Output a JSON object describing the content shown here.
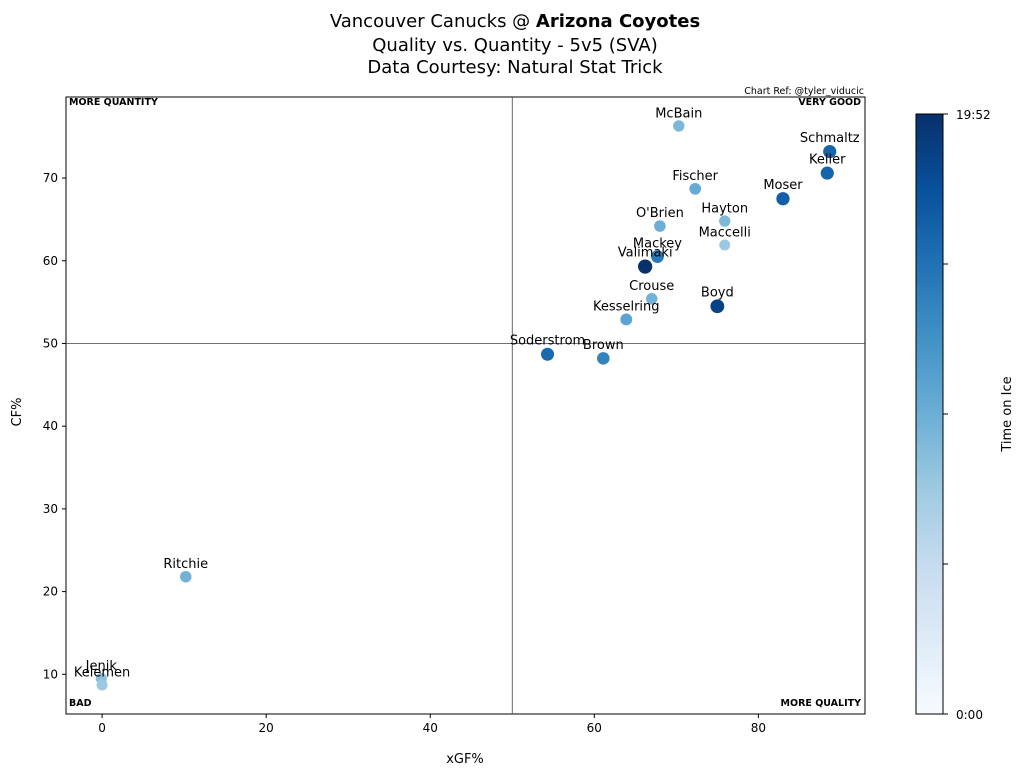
{
  "chart_data": {
    "type": "scatter",
    "title": {
      "line1_prefix": "Vancouver Canucks @ ",
      "line1_bold": "Arizona Coyotes",
      "line2": "Quality vs. Quantity - 5v5 (SVA)",
      "line3": "Data Courtesy: Natural Stat Trick"
    },
    "credit": "Chart Ref: @tyler_viducic",
    "xlabel": "xGF%",
    "ylabel": "CF%",
    "xlim": [
      -4.4,
      93
    ],
    "ylim": [
      5.2,
      79.8
    ],
    "xticks": [
      0,
      20,
      40,
      60,
      80
    ],
    "yticks": [
      10,
      20,
      30,
      40,
      50,
      60,
      70
    ],
    "reference_lines": {
      "x": 50,
      "y": 50
    },
    "quadrant_labels": {
      "top_left": "MORE QUANTITY",
      "top_right": "VERY GOOD",
      "bottom_left": "BAD",
      "bottom_right": "MORE QUALITY"
    },
    "colorbar": {
      "label": "Time on Ice",
      "colormap": "Blues",
      "min_label": "0:00",
      "max_label": "19:52",
      "colors": [
        "#f7fbff",
        "#deebf7",
        "#c6dbef",
        "#9ecae1",
        "#6baed6",
        "#4292c6",
        "#2171b5",
        "#08519c",
        "#08306b"
      ]
    },
    "points": [
      {
        "name": "McBain",
        "x": 70.3,
        "y": 76.3,
        "toi": 0.46
      },
      {
        "name": "Schmaltz",
        "x": 88.7,
        "y": 73.2,
        "toi": 0.8
      },
      {
        "name": "Keller",
        "x": 88.4,
        "y": 70.6,
        "toi": 0.8
      },
      {
        "name": "Fischer",
        "x": 72.3,
        "y": 68.7,
        "toi": 0.52
      },
      {
        "name": "Moser",
        "x": 83.0,
        "y": 67.5,
        "toi": 0.82
      },
      {
        "name": "Hayton",
        "x": 75.9,
        "y": 64.8,
        "toi": 0.45
      },
      {
        "name": "O'Brien",
        "x": 68.0,
        "y": 64.2,
        "toi": 0.5
      },
      {
        "name": "Maccelli",
        "x": 75.9,
        "y": 61.9,
        "toi": 0.38
      },
      {
        "name": "Mackey",
        "x": 67.7,
        "y": 60.5,
        "toi": 0.72
      },
      {
        "name": "Valimaki",
        "x": 66.2,
        "y": 59.3,
        "toi": 1.0
      },
      {
        "name": "Crouse",
        "x": 67.0,
        "y": 55.4,
        "toi": 0.48
      },
      {
        "name": "Boyd",
        "x": 75.0,
        "y": 54.5,
        "toi": 0.93
      },
      {
        "name": "Kesselring",
        "x": 63.9,
        "y": 52.9,
        "toi": 0.55
      },
      {
        "name": "Soderstrom",
        "x": 54.3,
        "y": 48.7,
        "toi": 0.78
      },
      {
        "name": "Brown",
        "x": 61.1,
        "y": 48.2,
        "toi": 0.68
      },
      {
        "name": "Ritchie",
        "x": 10.2,
        "y": 21.8,
        "toi": 0.48
      },
      {
        "name": "Jenik",
        "x": -0.1,
        "y": 9.5,
        "toi": 0.42
      },
      {
        "name": "Kelemen",
        "x": 0.0,
        "y": 8.7,
        "toi": 0.38
      }
    ]
  }
}
